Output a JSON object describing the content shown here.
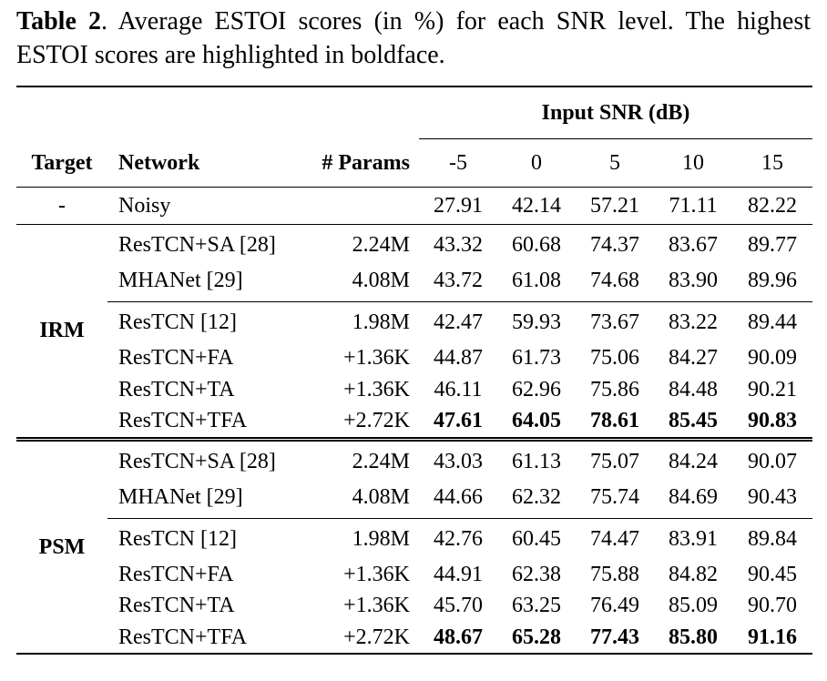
{
  "caption": {
    "label": "Table 2",
    "text": ". Average ESTOI scores (in %) for each SNR level. The highest ESTOI scores are highlighted in boldface."
  },
  "table": {
    "header": {
      "snr_group": "Input SNR (dB)",
      "target": "Target",
      "network": "Network",
      "params": "# Params",
      "snr_levels": [
        "-5",
        "0",
        "5",
        "10",
        "15"
      ]
    },
    "noisy": {
      "target": "-",
      "network": "Noisy",
      "params": "",
      "values": [
        "27.91",
        "42.14",
        "57.21",
        "71.11",
        "82.22"
      ]
    },
    "groups": [
      {
        "target": "IRM",
        "baselines": [
          {
            "network": "ResTCN+SA [28]",
            "params": "2.24M",
            "values": [
              "43.32",
              "60.68",
              "74.37",
              "83.67",
              "89.77"
            ]
          },
          {
            "network": "MHANet [29]",
            "params": "4.08M",
            "values": [
              "43.72",
              "61.08",
              "74.68",
              "83.90",
              "89.96"
            ]
          }
        ],
        "proposed": [
          {
            "network": "ResTCN [12]",
            "params": "1.98M",
            "values": [
              "42.47",
              "59.93",
              "73.67",
              "83.22",
              "89.44"
            ]
          },
          {
            "network": "ResTCN+FA",
            "params": "+1.36K",
            "values": [
              "44.87",
              "61.73",
              "75.06",
              "84.27",
              "90.09"
            ]
          },
          {
            "network": "ResTCN+TA",
            "params": "+1.36K",
            "values": [
              "46.11",
              "62.96",
              "75.86",
              "84.48",
              "90.21"
            ]
          },
          {
            "network": "ResTCN+TFA",
            "params": "+2.72K",
            "values": [
              "47.61",
              "64.05",
              "78.61",
              "85.45",
              "90.83"
            ]
          }
        ]
      },
      {
        "target": "PSM",
        "baselines": [
          {
            "network": "ResTCN+SA [28]",
            "params": "2.24M",
            "values": [
              "43.03",
              "61.13",
              "75.07",
              "84.24",
              "90.07"
            ]
          },
          {
            "network": "MHANet [29]",
            "params": "4.08M",
            "values": [
              "44.66",
              "62.32",
              "75.74",
              "84.69",
              "90.43"
            ]
          }
        ],
        "proposed": [
          {
            "network": "ResTCN [12]",
            "params": "1.98M",
            "values": [
              "42.76",
              "60.45",
              "74.47",
              "83.91",
              "89.84"
            ]
          },
          {
            "network": "ResTCN+FA",
            "params": "+1.36K",
            "values": [
              "44.91",
              "62.38",
              "75.88",
              "84.82",
              "90.45"
            ]
          },
          {
            "network": "ResTCN+TA",
            "params": "+1.36K",
            "values": [
              "45.70",
              "63.25",
              "76.49",
              "85.09",
              "90.70"
            ]
          },
          {
            "network": "ResTCN+TFA",
            "params": "+2.72K",
            "values": [
              "48.67",
              "65.28",
              "77.43",
              "85.80",
              "91.16"
            ]
          }
        ]
      }
    ]
  }
}
